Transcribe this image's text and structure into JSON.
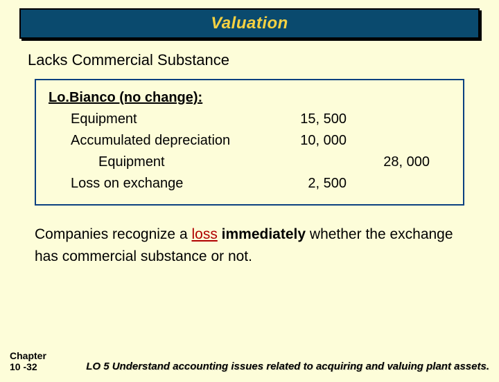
{
  "colors": {
    "page_bg": "#fdfdd9",
    "banner_bg": "#0a4a6e",
    "banner_text": "#f5d142",
    "box_border": "#0a4080",
    "loss_text": "#b00000"
  },
  "title": "Valuation",
  "subtitle": "Lacks Commercial Substance",
  "journal": {
    "heading": "Lo.Bianco (no change):",
    "lines": [
      {
        "account": "Equipment",
        "debit": "15, 500",
        "credit": "",
        "indent": 1
      },
      {
        "account": "Accumulated depreciation",
        "debit": "10, 000",
        "credit": "",
        "indent": 1
      },
      {
        "account": "Equipment",
        "debit": "",
        "credit": "28, 000",
        "indent": 2
      },
      {
        "account": "Loss on exchange",
        "debit": "2, 500",
        "credit": "",
        "indent": 1
      }
    ]
  },
  "body": {
    "pre": "Companies recognize a ",
    "loss": "loss",
    "mid": " immediately",
    "post": " whether the exchange has commercial substance or not."
  },
  "footer": {
    "chapter_label": "Chapter",
    "chapter_num": "10 -32",
    "lo": "LO 5 Understand accounting issues related to acquiring and valuing plant assets."
  }
}
